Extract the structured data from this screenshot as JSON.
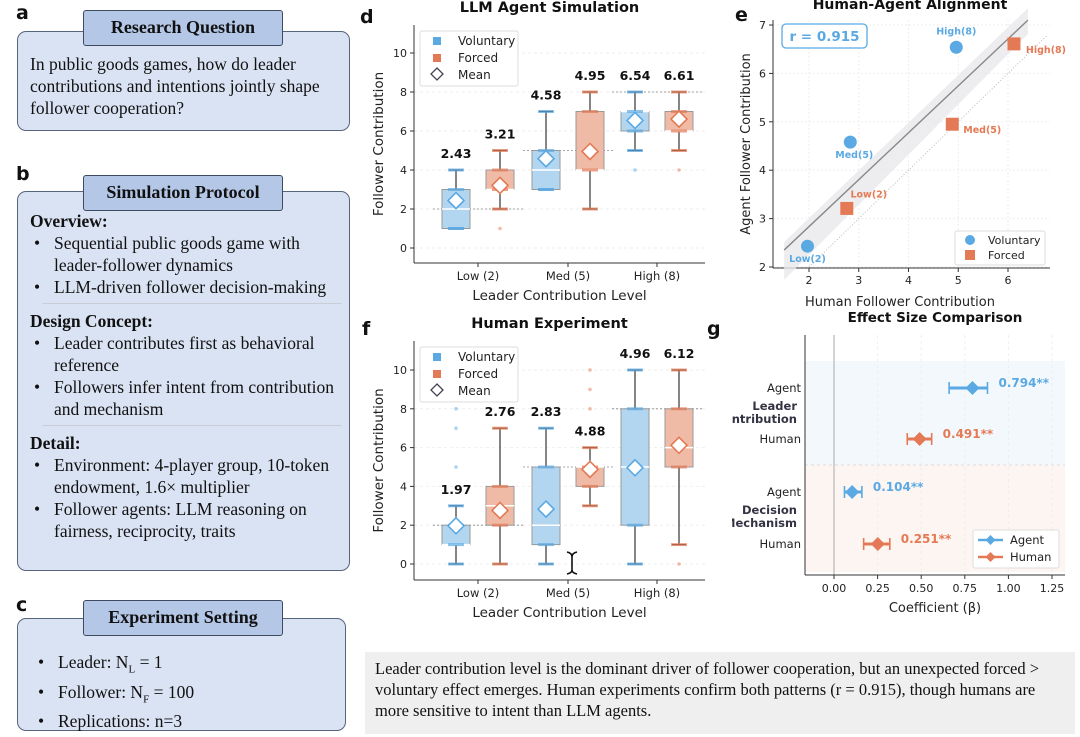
{
  "panels": {
    "a": {
      "label": "a",
      "title": "Research Question",
      "text": "In public goods games, how do leader contributions and intentions jointly shape follower cooperation?"
    },
    "b": {
      "label": "b",
      "title": "Simulation Protocol",
      "sections": [
        {
          "heading": "Overview:",
          "items": [
            "Sequential public goods game with leader-follower dynamics",
            "LLM-driven follower decision-making"
          ]
        },
        {
          "heading": "Design Concept:",
          "items": [
            "Leader contributes first as behavioral reference",
            "Followers infer intent from contribution and mechanism"
          ]
        },
        {
          "heading": "Detail:",
          "items": [
            "Environment: 4-player group, 10-token endowment, 1.6× multiplier",
            "Follower agents: LLM reasoning on fairness, reciprocity, traits"
          ]
        }
      ]
    },
    "c": {
      "label": "c",
      "title": "Experiment Setting",
      "items": [
        {
          "prefix": "Leader: N",
          "sub": "L",
          "suffix": " = 1"
        },
        {
          "prefix": "Follower: N",
          "sub": "F",
          "suffix": " = 100"
        },
        {
          "prefix": "Replications: n=3",
          "sub": "",
          "suffix": ""
        }
      ]
    },
    "d": {
      "label": "d"
    },
    "e": {
      "label": "e"
    },
    "f": {
      "label": "f"
    },
    "g": {
      "label": "g"
    }
  },
  "caption": "Leader contribution level is the dominant driver of follower cooperation, but an unexpected forced > voluntary effect emerges. Human experiments confirm both patterns (r = 0.915), though humans are more sensitive to intent than LLM agents.",
  "colors": {
    "voluntary": "#5aa9e3",
    "forced": "#e47a55",
    "box_voluntary": "#b3d6f0",
    "box_forced": "#f0bba6"
  },
  "icons": {
    "cursor": "text-cursor-icon"
  },
  "chart_data": [
    {
      "id": "d",
      "type": "box",
      "title": "LLM Agent Simulation",
      "xlabel": "Leader Contribution Level",
      "ylabel": "Follower Contribution",
      "categories": [
        "Low (2)",
        "Med (5)",
        "High (8)"
      ],
      "reference_levels": [
        2,
        5,
        8
      ],
      "ylim": [
        -0.8,
        11.3
      ],
      "yticks": [
        0,
        2,
        4,
        6,
        8,
        10
      ],
      "grid": true,
      "legend": {
        "position": "top-left",
        "entries": [
          "Voluntary",
          "Forced",
          "Mean"
        ]
      },
      "series": [
        {
          "name": "Voluntary",
          "boxes": [
            {
              "q1": 1,
              "median": 2,
              "q3": 3,
              "whisker_low": 1,
              "whisker_high": 4,
              "mean": 2.43,
              "mean_label": "2.43",
              "outliers": []
            },
            {
              "q1": 3,
              "median": 4,
              "q3": 5,
              "whisker_low": 3,
              "whisker_high": 7,
              "mean": 4.58,
              "mean_label": "4.58",
              "outliers": []
            },
            {
              "q1": 6,
              "median": 7,
              "q3": 7,
              "whisker_low": 5,
              "whisker_high": 8,
              "mean": 6.54,
              "mean_label": "6.54",
              "outliers": [
                4
              ]
            }
          ]
        },
        {
          "name": "Forced",
          "boxes": [
            {
              "q1": 3,
              "median": 3,
              "q3": 4,
              "whisker_low": 2,
              "whisker_high": 5,
              "mean": 3.21,
              "mean_label": "3.21",
              "outliers": [
                1
              ]
            },
            {
              "q1": 4,
              "median": 4,
              "q3": 7,
              "whisker_low": 2,
              "whisker_high": 8,
              "mean": 4.95,
              "mean_label": "4.95",
              "outliers": []
            },
            {
              "q1": 6,
              "median": 6,
              "q3": 7,
              "whisker_low": 5,
              "whisker_high": 8,
              "mean": 6.61,
              "mean_label": "6.61",
              "outliers": [
                4
              ]
            }
          ]
        }
      ]
    },
    {
      "id": "e",
      "type": "scatter",
      "title": "Human-Agent Alignment",
      "xlabel": "Human Follower Contribution",
      "ylabel": "Agent Follower Contribution",
      "xlim": [
        1.4,
        6.8
      ],
      "ylim": [
        1.95,
        7.1
      ],
      "xticks": [
        2,
        3,
        4,
        5,
        6
      ],
      "yticks": [
        2,
        3,
        4,
        5,
        6,
        7
      ],
      "grid": true,
      "annotation": "r = 0.915",
      "fit_line": {
        "x": [
          1.5,
          6.4
        ],
        "y": [
          2.35,
          7.1
        ]
      },
      "identity_line": true,
      "legend": {
        "position": "bottom-right",
        "entries": [
          "Voluntary",
          "Forced"
        ]
      },
      "series": [
        {
          "name": "Voluntary",
          "marker": "circle",
          "points": [
            {
              "x": 1.97,
              "y": 2.43,
              "label": "Low(2)"
            },
            {
              "x": 2.83,
              "y": 4.58,
              "label": "Med(5)"
            },
            {
              "x": 4.96,
              "y": 6.54,
              "label": "High(8)"
            }
          ]
        },
        {
          "name": "Forced",
          "marker": "square",
          "points": [
            {
              "x": 2.76,
              "y": 3.21,
              "label": "Low(2)"
            },
            {
              "x": 4.88,
              "y": 4.95,
              "label": "Med(5)"
            },
            {
              "x": 6.12,
              "y": 6.61,
              "label": "High(8)"
            }
          ]
        }
      ]
    },
    {
      "id": "f",
      "type": "box",
      "title": "Human Experiment",
      "xlabel": "Leader Contribution Level",
      "ylabel": "Follower Contribution",
      "categories": [
        "Low (2)",
        "Med (5)",
        "High (8)"
      ],
      "reference_levels": [
        2,
        5,
        8
      ],
      "ylim": [
        -0.8,
        11.3
      ],
      "yticks": [
        0,
        2,
        4,
        6,
        8,
        10
      ],
      "grid": true,
      "legend": {
        "position": "top-left",
        "entries": [
          "Voluntary",
          "Forced",
          "Mean"
        ]
      },
      "series": [
        {
          "name": "Voluntary",
          "boxes": [
            {
              "q1": 1,
              "median": 1,
              "q3": 2,
              "whisker_low": 0,
              "whisker_high": 3,
              "mean": 1.97,
              "mean_label": "1.97",
              "outliers": [
                5,
                7,
                8
              ]
            },
            {
              "q1": 1,
              "median": 2,
              "q3": 5,
              "whisker_low": 0,
              "whisker_high": 7,
              "mean": 2.83,
              "mean_label": "2.83",
              "outliers": []
            },
            {
              "q1": 2,
              "median": 5,
              "q3": 8,
              "whisker_low": 0,
              "whisker_high": 10,
              "mean": 4.96,
              "mean_label": "4.96",
              "outliers": []
            }
          ]
        },
        {
          "name": "Forced",
          "boxes": [
            {
              "q1": 2,
              "median": 3,
              "q3": 4,
              "whisker_low": 0,
              "whisker_high": 7,
              "mean": 2.76,
              "mean_label": "2.76",
              "outliers": []
            },
            {
              "q1": 4,
              "median": 5,
              "q3": 5,
              "whisker_low": 3,
              "whisker_high": 6,
              "mean": 4.88,
              "mean_label": "4.88",
              "outliers": [
                8,
                9,
                10
              ]
            },
            {
              "q1": 5,
              "median": 6,
              "q3": 8,
              "whisker_low": 1,
              "whisker_high": 10,
              "mean": 6.12,
              "mean_label": "6.12",
              "outliers": [
                0
              ]
            }
          ]
        }
      ]
    },
    {
      "id": "g",
      "type": "forest",
      "title": "Effect Size Comparison",
      "xlabel": "Coefficient (β)",
      "xlim": [
        -0.16,
        1.32
      ],
      "xticks": [
        "0.00",
        "0.25",
        "0.50",
        "0.75",
        "1.00",
        "1.25"
      ],
      "grid": true,
      "legend": {
        "position": "bottom-right",
        "entries": [
          "Agent",
          "Human"
        ]
      },
      "groups": [
        {
          "name": "Leader Contribution",
          "rows": [
            {
              "label": "Agent",
              "series": "Agent",
              "value": 0.794,
              "ci": [
                0.66,
                0.88
              ],
              "text": "0.794**"
            },
            {
              "label": "Human",
              "series": "Human",
              "value": 0.491,
              "ci": [
                0.42,
                0.56
              ],
              "text": "0.491**"
            }
          ]
        },
        {
          "name": "Decision Mechanism",
          "rows": [
            {
              "label": "Agent",
              "series": "Agent",
              "value": 0.104,
              "ci": [
                0.06,
                0.16
              ],
              "text": "0.104**"
            },
            {
              "label": "Human",
              "series": "Human",
              "value": 0.251,
              "ci": [
                0.17,
                0.32
              ],
              "text": "0.251**"
            }
          ]
        }
      ]
    }
  ]
}
